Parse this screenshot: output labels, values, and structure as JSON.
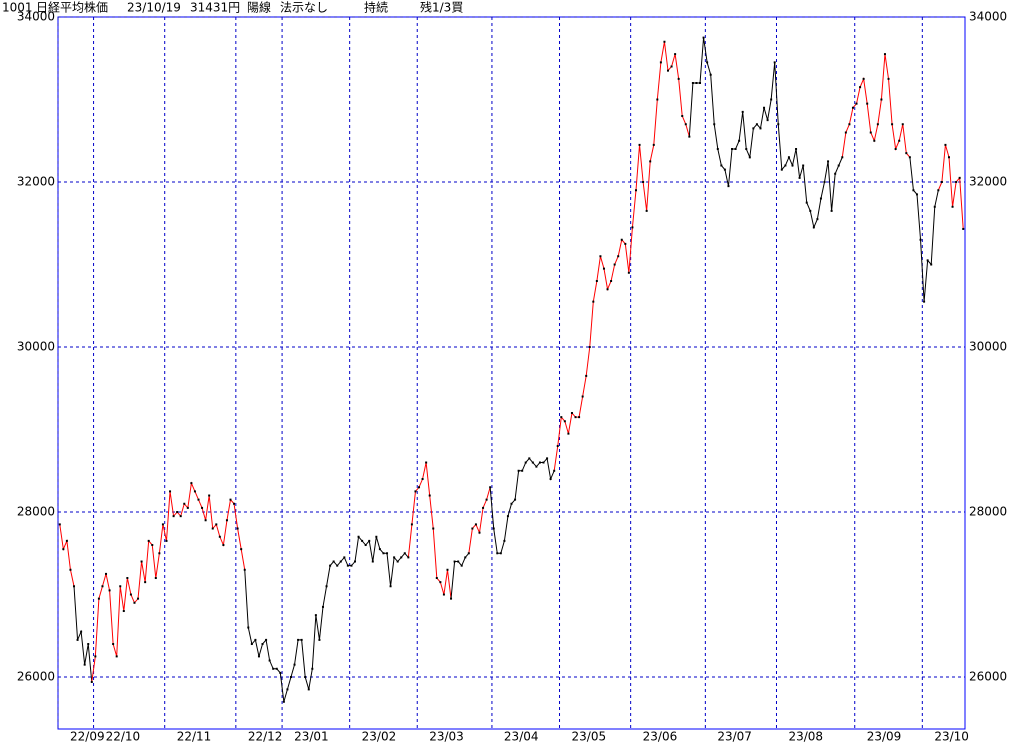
{
  "header": {
    "code": "1001",
    "name": "日経平均株価",
    "date": "23/10/19",
    "price": "31431円",
    "candle": "陽線",
    "method": "法示なし",
    "state": "持続",
    "remain": "残1/3買"
  },
  "chart_data": {
    "type": "line",
    "grid": true,
    "frame_color": "#0000ff",
    "grid_color": "#0000c8",
    "point_color": "#000000",
    "ylim": [
      25370,
      34000
    ],
    "yticks": [
      26000,
      28000,
      30000,
      32000,
      34000
    ],
    "xlim": [
      0,
      255
    ],
    "xticks": [
      {
        "value": 0,
        "label": "22/09"
      },
      {
        "value": 10,
        "label": "22/10"
      },
      {
        "value": 30,
        "label": "22/11"
      },
      {
        "value": 50,
        "label": "22/12"
      },
      {
        "value": 63,
        "label": "23/01"
      },
      {
        "value": 82,
        "label": "23/02"
      },
      {
        "value": 101,
        "label": "23/03"
      },
      {
        "value": 122,
        "label": "23/04"
      },
      {
        "value": 141,
        "label": "23/05"
      },
      {
        "value": 161,
        "label": "23/06"
      },
      {
        "value": 182,
        "label": "23/07"
      },
      {
        "value": 202,
        "label": "23/08"
      },
      {
        "value": 224,
        "label": "23/09"
      },
      {
        "value": 243,
        "label": "23/10"
      }
    ],
    "values": [
      27850,
      27550,
      27650,
      27300,
      27100,
      26450,
      26550,
      26150,
      26400,
      25940,
      26250,
      26950,
      27100,
      27250,
      27050,
      26400,
      26250,
      27100,
      26800,
      27200,
      27000,
      26900,
      26950,
      27400,
      27150,
      27650,
      27600,
      27200,
      27500,
      27850,
      27650,
      28250,
      27950,
      28000,
      27950,
      28100,
      28050,
      28350,
      28250,
      28150,
      28050,
      27900,
      28200,
      27800,
      27850,
      27700,
      27600,
      27900,
      28150,
      28100,
      27800,
      27550,
      27300,
      26600,
      26400,
      26450,
      26250,
      26400,
      26450,
      26200,
      26100,
      26100,
      26050,
      25700,
      25850,
      26000,
      26150,
      26450,
      26450,
      26000,
      25850,
      26100,
      26750,
      26450,
      26850,
      27100,
      27350,
      27400,
      27350,
      27400,
      27450,
      27350,
      27350,
      27400,
      27700,
      27650,
      27600,
      27650,
      27400,
      27700,
      27550,
      27500,
      27500,
      27100,
      27450,
      27400,
      27450,
      27500,
      27450,
      27850,
      28250,
      28300,
      28400,
      28600,
      28200,
      27800,
      27200,
      27150,
      27000,
      27300,
      26950,
      27400,
      27400,
      27350,
      27450,
      27500,
      27800,
      27850,
      27750,
      28050,
      28150,
      28300,
      27800,
      27500,
      27500,
      27650,
      27950,
      28100,
      28150,
      28500,
      28500,
      28600,
      28650,
      28600,
      28550,
      28600,
      28600,
      28650,
      28400,
      28500,
      28800,
      29150,
      29100,
      28950,
      29200,
      29150,
      29150,
      29400,
      29650,
      30000,
      30550,
      30800,
      31100,
      30950,
      30700,
      30800,
      31000,
      31100,
      31300,
      31250,
      30900,
      31450,
      31900,
      32450,
      32000,
      31650,
      32250,
      32450,
      33000,
      33450,
      33700,
      33350,
      33400,
      33550,
      33250,
      32800,
      32700,
      32550,
      33200,
      33200,
      33200,
      33750,
      33450,
      33300,
      32700,
      32400,
      32200,
      32150,
      31950,
      32400,
      32400,
      32500,
      32850,
      32400,
      32300,
      32650,
      32700,
      32650,
      32900,
      32750,
      33000,
      33450,
      32700,
      32150,
      32200,
      32300,
      32200,
      32400,
      32050,
      32200,
      31750,
      31650,
      31450,
      31550,
      31800,
      32000,
      32250,
      31650,
      32100,
      32200,
      32300,
      32600,
      32700,
      32900,
      32950,
      33150,
      33250,
      32950,
      32600,
      32500,
      32700,
      33000,
      33550,
      33250,
      32700,
      32400,
      32500,
      32700,
      32350,
      32300,
      31900,
      31850,
      31300,
      30550,
      31050,
      31000,
      31700,
      31900,
      32000,
      32450,
      32300,
      31700,
      32000,
      32050,
      31431
    ],
    "colors": [
      "red",
      "red",
      "red",
      "red",
      "red",
      "black",
      "black",
      "black",
      "black",
      "black",
      "red",
      "red",
      "red",
      "red",
      "red",
      "red",
      "red",
      "red",
      "red",
      "red",
      "red",
      "red",
      "red",
      "red",
      "red",
      "red",
      "red",
      "red",
      "red",
      "red",
      "red",
      "red",
      "red",
      "red",
      "red",
      "red",
      "red",
      "red",
      "red",
      "red",
      "red",
      "red",
      "red",
      "red",
      "red",
      "red",
      "red",
      "red",
      "red",
      "red",
      "red",
      "red",
      "red",
      "black",
      "black",
      "black",
      "black",
      "black",
      "black",
      "black",
      "black",
      "black",
      "black",
      "black",
      "black",
      "black",
      "black",
      "black",
      "black",
      "black",
      "black",
      "black",
      "black",
      "black",
      "black",
      "black",
      "black",
      "black",
      "black",
      "black",
      "black",
      "black",
      "black",
      "black",
      "black",
      "black",
      "black",
      "black",
      "black",
      "black",
      "black",
      "black",
      "black",
      "black",
      "black",
      "black",
      "black",
      "black",
      "black",
      "red",
      "red",
      "red",
      "red",
      "red",
      "red",
      "red",
      "red",
      "red",
      "red",
      "red",
      "red",
      "black",
      "black",
      "black",
      "black",
      "black",
      "red",
      "red",
      "red",
      "red",
      "red",
      "red",
      "black",
      "black",
      "black",
      "black",
      "black",
      "black",
      "black",
      "black",
      "black",
      "black",
      "black",
      "black",
      "black",
      "black",
      "black",
      "black",
      "black",
      "black",
      "red",
      "red",
      "red",
      "red",
      "red",
      "red",
      "red",
      "red",
      "red",
      "red",
      "red",
      "red",
      "red",
      "red",
      "red",
      "red",
      "red",
      "red",
      "red",
      "red",
      "red",
      "red",
      "red",
      "red",
      "red",
      "red",
      "red",
      "red",
      "red",
      "red",
      "red",
      "red",
      "red",
      "red",
      "red",
      "red",
      "red",
      "red",
      "black",
      "black",
      "black",
      "black",
      "black",
      "black",
      "black",
      "black",
      "black",
      "black",
      "black",
      "black",
      "black",
      "black",
      "black",
      "black",
      "black",
      "black",
      "black",
      "black",
      "black",
      "black",
      "black",
      "black",
      "black",
      "black",
      "black",
      "black",
      "black",
      "black",
      "black",
      "black",
      "black",
      "black",
      "black",
      "black",
      "black",
      "black",
      "black",
      "black",
      "black",
      "black",
      "black",
      "red",
      "red",
      "red",
      "red",
      "red",
      "red",
      "red",
      "red",
      "red",
      "red",
      "red",
      "red",
      "red",
      "red",
      "red",
      "red",
      "red",
      "red",
      "red",
      "black",
      "black",
      "black",
      "black",
      "black",
      "black",
      "black",
      "black",
      "red",
      "red",
      "red",
      "red",
      "red",
      "red",
      "red"
    ]
  }
}
